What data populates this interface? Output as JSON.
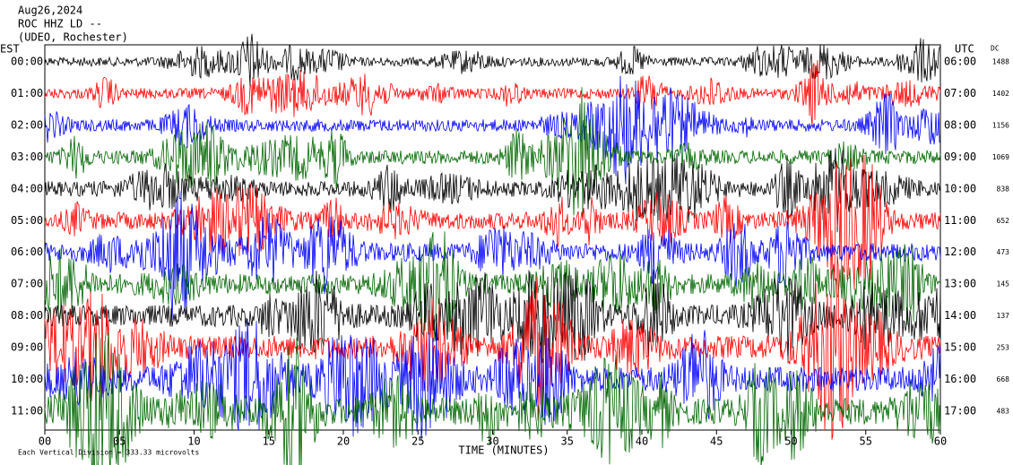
{
  "header": {
    "date": "Aug26,2024",
    "station": "ROC HHZ LD --",
    "network": "(UDEO, Rochester)"
  },
  "left_axis": {
    "title": "EST",
    "labels": [
      "00:00",
      "01:00",
      "02:00",
      "03:00",
      "04:00",
      "05:00",
      "06:00",
      "07:00",
      "08:00",
      "09:00",
      "10:00",
      "11:00"
    ]
  },
  "right_axis": {
    "title": "UTC",
    "labels": [
      "06:00",
      "07:00",
      "08:00",
      "09:00",
      "10:00",
      "11:00",
      "12:00",
      "13:00",
      "14:00",
      "15:00",
      "16:00",
      "17:00"
    ]
  },
  "dc": {
    "title": "DC",
    "values": [
      "1488",
      "1402",
      "1156",
      "1069",
      "838",
      "652",
      "473",
      "145",
      "137",
      "253",
      "668",
      "483"
    ]
  },
  "x_axis": {
    "title": "TIME (MINUTES)",
    "ticks": [
      "00",
      "05",
      "10",
      "15",
      "20",
      "25",
      "30",
      "35",
      "40",
      "45",
      "50",
      "55",
      "60"
    ]
  },
  "footer": {
    "note": "Each Vertical Division =  333.33 microvolts"
  }
}
